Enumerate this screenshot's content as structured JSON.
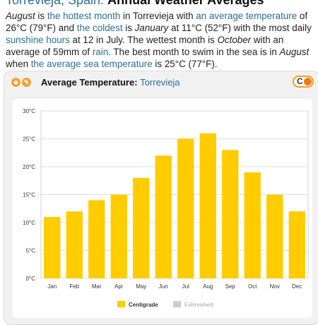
{
  "header": {
    "place": "Torrevieja, Spain:",
    "title": "Annual Weather Averages"
  },
  "intro": {
    "p1": "August",
    "p2": " is ",
    "p3": "the hottest month",
    "p4": " in Torrevieja with ",
    "p5": "an average temperature",
    "p6": " of 26°C (79°F) and ",
    "p7": "the coldest",
    "p8": " is ",
    "p9": "January",
    "p10": " at 11°C (52°F) with the most daily ",
    "p11": "sunshine hours",
    "p12": " at 12 in July. The wettest month is ",
    "p13": "October",
    "p14": " with an average of 59mm of ",
    "p15": "rain",
    "p16": ". The best month to swim in the sea is in ",
    "p17": "August",
    "p18": " when ",
    "p19": "the average sea temperature",
    "p20": " is 25°C (77°F)."
  },
  "card": {
    "title": "Average Temperature:",
    "location": "Torrevieja",
    "toggle_label": "C"
  },
  "colors": {
    "bar": "#ffcc00",
    "accent": "#f0a020",
    "link": "#2a6f97",
    "fahrenheit_legend": "#cccccc"
  },
  "chart_data": {
    "type": "bar",
    "categories": [
      "Jan",
      "Feb",
      "Mar",
      "Apr",
      "May",
      "Jun",
      "Jul",
      "Aug",
      "Sep",
      "Oct",
      "Nov",
      "Dec"
    ],
    "series": [
      {
        "name": "Centigrade",
        "values": [
          11,
          12,
          14,
          15,
          18,
          22,
          25,
          26,
          23,
          19,
          15,
          12
        ]
      }
    ],
    "legend": [
      "Centigrade",
      "Fahrenheit"
    ],
    "yticks": [
      "0°C",
      "5°C",
      "10°C",
      "15°C",
      "20°C",
      "25°C",
      "30°C"
    ],
    "ylim": [
      0,
      30
    ],
    "grid": true,
    "legend_position": "bottom"
  }
}
